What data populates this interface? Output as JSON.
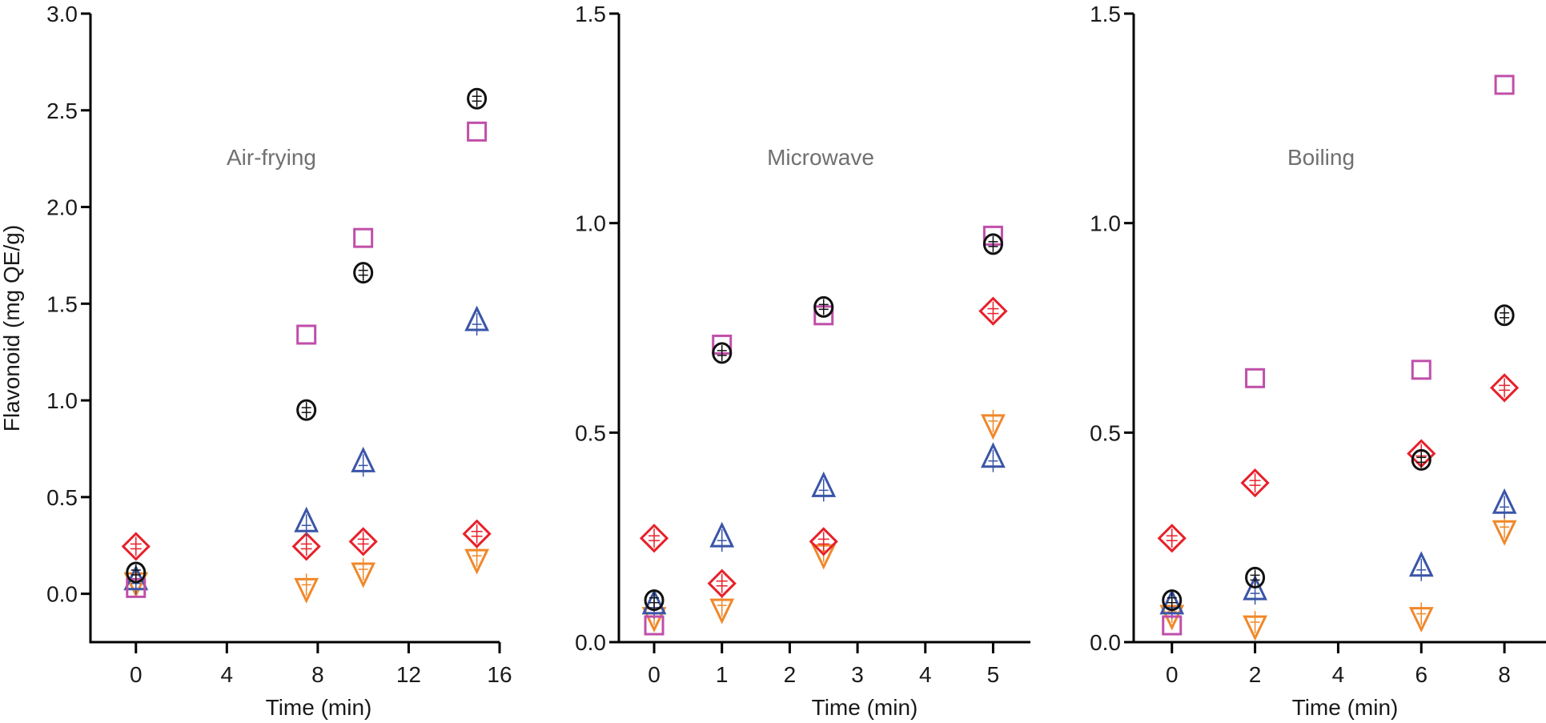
{
  "chart_data": [
    {
      "type": "scatter",
      "title": "Air-frying",
      "xlabel": "Time (min)",
      "ylabel": "Flavonoid (mg QE/g)",
      "xlim": [
        -2,
        16
      ],
      "ylim": [
        -0.25,
        3.0
      ],
      "xticks": [
        "0",
        "4",
        "8",
        "12",
        "16"
      ],
      "xtick_values": [
        0,
        4,
        8,
        12,
        16
      ],
      "yticks": [
        "0.0",
        "0.5",
        "1.0",
        "1.5",
        "2.0",
        "2.5",
        "3.0"
      ],
      "ytick_values": [
        0,
        0.5,
        1.0,
        1.5,
        2.0,
        2.5,
        3.0
      ],
      "x": [
        0,
        7.5,
        10,
        15
      ],
      "series": [
        {
          "name": "circle",
          "marker": "circle",
          "color": "#111111",
          "values": [
            0.11,
            0.95,
            1.66,
            2.56
          ]
        },
        {
          "name": "square",
          "marker": "square",
          "color": "#c04fa9",
          "values": [
            0.03,
            1.34,
            1.84,
            2.39
          ]
        },
        {
          "name": "triangle-up",
          "marker": "triangle-up",
          "color": "#3a55a8",
          "values": [
            0.07,
            0.37,
            0.68,
            1.41
          ]
        },
        {
          "name": "diamond",
          "marker": "diamond",
          "color": "#e8202a",
          "values": [
            0.245,
            0.245,
            0.27,
            0.31
          ]
        },
        {
          "name": "triangle-down",
          "marker": "triangle-down",
          "color": "#f0882a",
          "values": [
            0.06,
            0.03,
            0.11,
            0.18
          ]
        }
      ]
    },
    {
      "type": "scatter",
      "title": "Microwave",
      "xlabel": "Time (min)",
      "ylabel": "",
      "xlim": [
        -0.52,
        5.55
      ],
      "ylim": [
        0.0,
        1.5
      ],
      "xticks": [
        "0",
        "1",
        "2",
        "3",
        "4",
        "5"
      ],
      "xtick_values": [
        0,
        1,
        2,
        3,
        4,
        5
      ],
      "yticks": [
        "0.0",
        "0.5",
        "1.0",
        "1.5"
      ],
      "ytick_values": [
        0,
        0.5,
        1.0,
        1.5
      ],
      "x": [
        0,
        1,
        2.5,
        5
      ],
      "series": [
        {
          "name": "circle",
          "marker": "circle",
          "color": "#111111",
          "values": [
            0.1,
            0.69,
            0.8,
            0.95
          ]
        },
        {
          "name": "square",
          "marker": "square",
          "color": "#c04fa9",
          "values": [
            0.04,
            0.71,
            0.78,
            0.97
          ]
        },
        {
          "name": "triangle-up",
          "marker": "triangle-up",
          "color": "#3a55a8",
          "values": [
            0.09,
            0.25,
            0.37,
            0.44
          ]
        },
        {
          "name": "diamond",
          "marker": "diamond",
          "color": "#e8202a",
          "values": [
            0.248,
            0.14,
            0.24,
            0.79
          ]
        },
        {
          "name": "triangle-down",
          "marker": "triangle-down",
          "color": "#f0882a",
          "values": [
            0.06,
            0.08,
            0.21,
            0.52
          ]
        }
      ]
    },
    {
      "type": "scatter",
      "title": "Boiling",
      "xlabel": "Time (min)",
      "ylabel": "",
      "xlim": [
        -0.92,
        9.0
      ],
      "ylim": [
        0.0,
        1.5
      ],
      "xticks": [
        "0",
        "2",
        "4",
        "6",
        "8"
      ],
      "xtick_values": [
        0,
        2,
        4,
        6,
        8
      ],
      "yticks": [
        "0.0",
        "0.5",
        "1.0",
        "1.5"
      ],
      "ytick_values": [
        0,
        0.5,
        1.0,
        1.5
      ],
      "x": [
        0,
        2,
        6,
        8
      ],
      "series": [
        {
          "name": "circle",
          "marker": "circle",
          "color": "#111111",
          "values": [
            0.1,
            0.154,
            0.435,
            0.78
          ]
        },
        {
          "name": "square",
          "marker": "square",
          "color": "#c04fa9",
          "values": [
            0.04,
            0.63,
            0.65,
            1.33
          ]
        },
        {
          "name": "triangle-up",
          "marker": "triangle-up",
          "color": "#3a55a8",
          "values": [
            0.09,
            0.124,
            0.18,
            0.33
          ]
        },
        {
          "name": "diamond",
          "marker": "diamond",
          "color": "#e8202a",
          "values": [
            0.248,
            0.38,
            0.45,
            0.607
          ]
        },
        {
          "name": "triangle-down",
          "marker": "triangle-down",
          "color": "#f0882a",
          "values": [
            0.065,
            0.04,
            0.06,
            0.267
          ]
        }
      ]
    }
  ]
}
